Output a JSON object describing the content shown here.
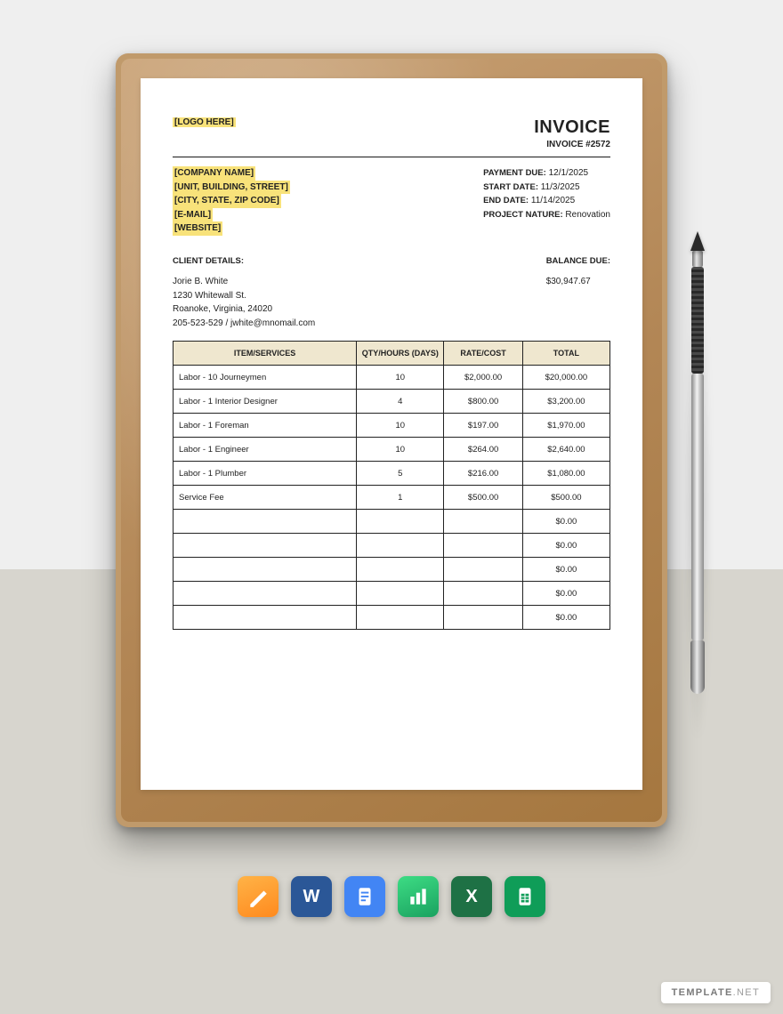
{
  "colors": {
    "bg_top": "#efefef",
    "bg_bottom": "#d7d5ce",
    "clipboard": "#c09a6b",
    "paper": "#ffffff",
    "highlight": "#f8e27a",
    "table_header_bg": "#efe7cf",
    "border": "#222222",
    "text": "#222222"
  },
  "header": {
    "logo_placeholder": "[LOGO HERE]",
    "title": "INVOICE",
    "invoice_number_label": "INVOICE #2572"
  },
  "company_placeholders": {
    "name": "[COMPANY NAME]",
    "address1": "[UNIT, BUILDING, STREET]",
    "address2": "[CITY, STATE, ZIP CODE]",
    "email": "[E-MAIL]",
    "website": "[WEBSITE]"
  },
  "meta": {
    "payment_due_label": "PAYMENT DUE:",
    "payment_due": "12/1/2025",
    "start_date_label": "START DATE:",
    "start_date": "11/3/2025",
    "end_date_label": "END DATE:",
    "end_date": "11/14/2025",
    "project_nature_label": "PROJECT NATURE:",
    "project_nature": "Renovation"
  },
  "client": {
    "heading": "CLIENT DETAILS:",
    "name": "Jorie B. White",
    "street": "1230 Whitewall St.",
    "city": "Roanoke, Virginia, 24020",
    "contact": "205-523-529 / jwhite@mnomail.com"
  },
  "balance": {
    "label": "BALANCE DUE:",
    "amount": "$30,947.67"
  },
  "table": {
    "columns": [
      "ITEM/SERVICES",
      "QTY/HOURS (DAYS)",
      "RATE/COST",
      "TOTAL"
    ],
    "col_widths_pct": [
      42,
      20,
      18,
      20
    ],
    "header_bg": "#efe7cf",
    "rows": [
      {
        "item": "Labor - 10 Journeymen",
        "qty": "10",
        "rate": "$2,000.00",
        "total": "$20,000.00"
      },
      {
        "item": "Labor - 1 Interior Designer",
        "qty": "4",
        "rate": "$800.00",
        "total": "$3,200.00"
      },
      {
        "item": "Labor - 1 Foreman",
        "qty": "10",
        "rate": "$197.00",
        "total": "$1,970.00"
      },
      {
        "item": "Labor - 1 Engineer",
        "qty": "10",
        "rate": "$264.00",
        "total": "$2,640.00"
      },
      {
        "item": "Labor - 1 Plumber",
        "qty": "5",
        "rate": "$216.00",
        "total": "$1,080.00"
      },
      {
        "item": "Service Fee",
        "qty": "1",
        "rate": "$500.00",
        "total": "$500.00"
      },
      {
        "item": "",
        "qty": "",
        "rate": "",
        "total": "$0.00"
      },
      {
        "item": "",
        "qty": "",
        "rate": "",
        "total": "$0.00"
      },
      {
        "item": "",
        "qty": "",
        "rate": "",
        "total": "$0.00"
      },
      {
        "item": "",
        "qty": "",
        "rate": "",
        "total": "$0.00"
      },
      {
        "item": "",
        "qty": "",
        "rate": "",
        "total": "$0.00"
      }
    ]
  },
  "apps": {
    "items": [
      {
        "name": "pages-icon",
        "label": "Pages"
      },
      {
        "name": "word-icon",
        "label": "Word"
      },
      {
        "name": "gdocs-icon",
        "label": "Google Docs"
      },
      {
        "name": "numbers-icon",
        "label": "Numbers"
      },
      {
        "name": "excel-icon",
        "label": "Excel"
      },
      {
        "name": "gsheets-icon",
        "label": "Google Sheets"
      }
    ]
  },
  "watermark": {
    "brand": "TEMPLATE",
    "tld": ".NET"
  }
}
